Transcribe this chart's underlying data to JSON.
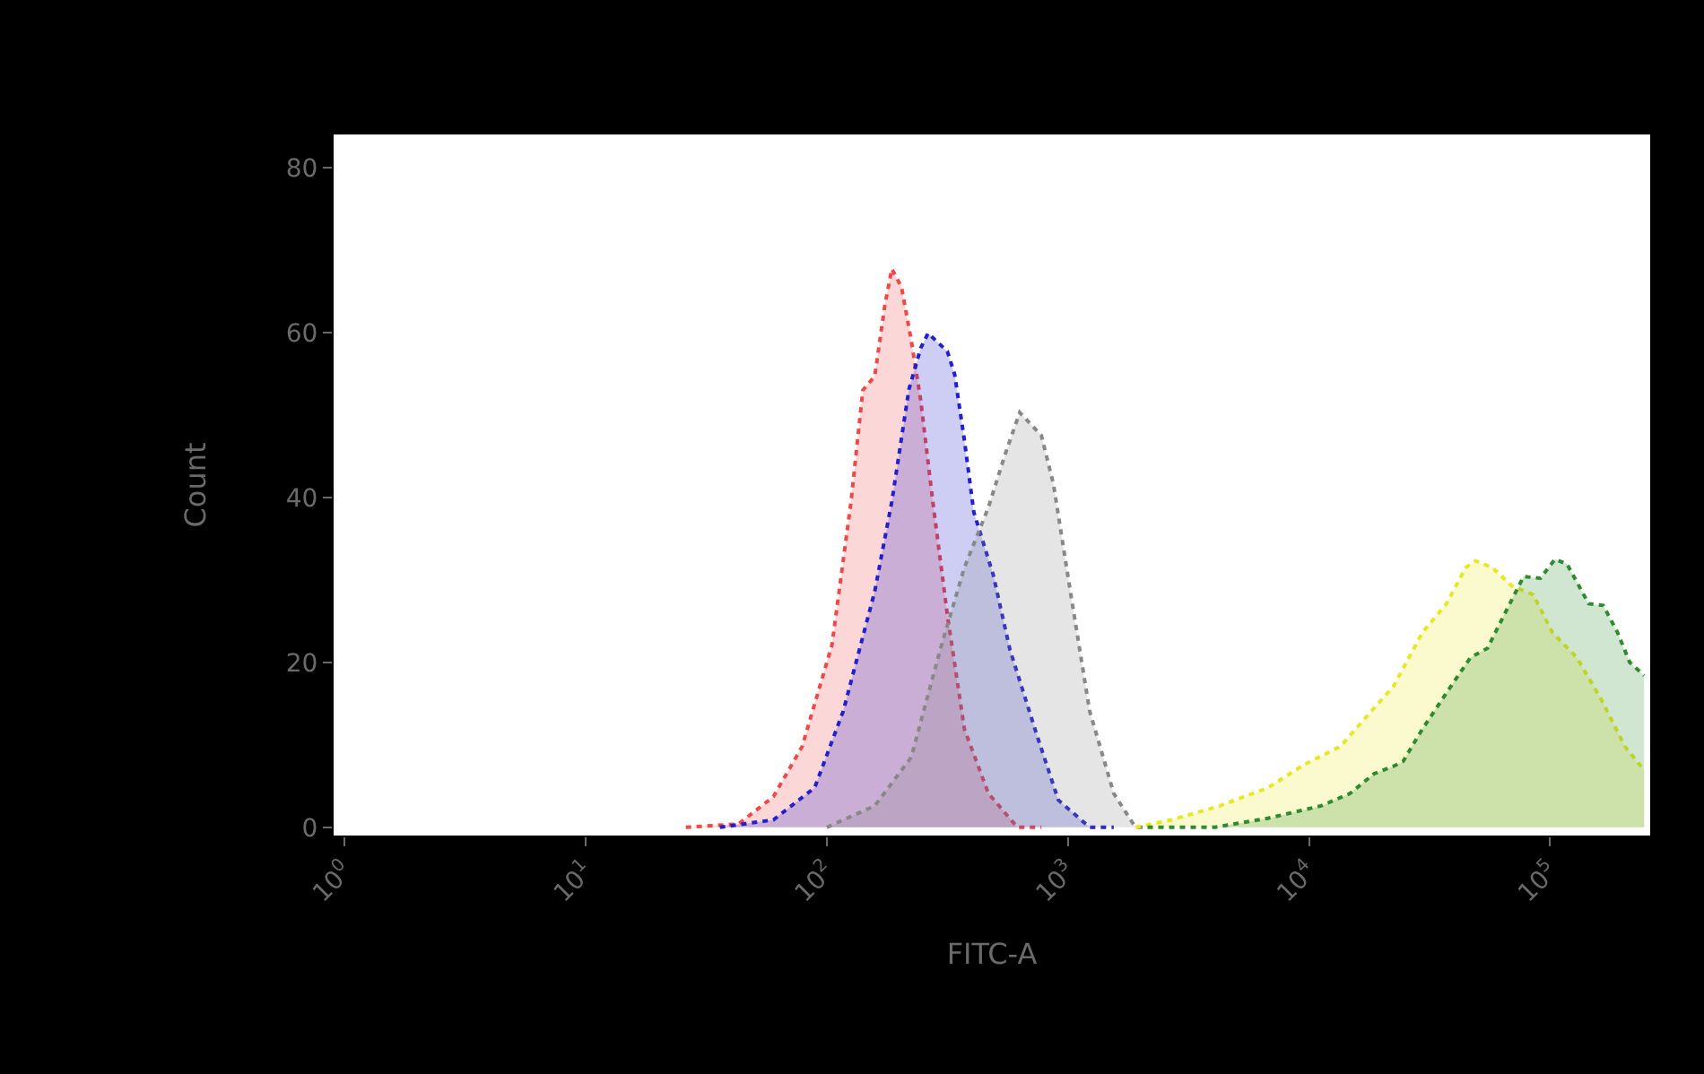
{
  "chart_data": {
    "type": "area",
    "xlabel": "FITC-A",
    "ylabel": "Count",
    "log": "x",
    "xlim": [
      0.9,
      260000
    ],
    "xticks": [
      {
        "value": 1,
        "label": "10$^{0}$"
      },
      {
        "value": 10,
        "label": "10$^{1}$"
      },
      {
        "value": 100,
        "label": "10$^{2}$"
      },
      {
        "value": 1000,
        "label": "10$^{3}$"
      },
      {
        "value": 10000,
        "label": "10$^{4}$"
      },
      {
        "value": 100000,
        "label": "10$^{5}$"
      }
    ],
    "ylim": [
      -1,
      84
    ],
    "yticks": [
      0,
      20,
      40,
      60,
      80
    ],
    "grid": false,
    "marker": "none",
    "line_style": "dotted",
    "series": [
      {
        "color": "#f04848",
        "x": [
          26,
          43,
          60,
          79,
          105,
          126,
          141,
          158,
          174,
          186,
          204,
          224,
          245,
          275,
          316,
          372,
          468,
          617,
          776
        ],
        "values": [
          0,
          0.4,
          3.7,
          9.8,
          22.1,
          39.5,
          53,
          54.7,
          63.3,
          67.7,
          65.5,
          59,
          51.8,
          39.5,
          25.8,
          11.9,
          4.1,
          0,
          0
        ]
      },
      {
        "color": "#2020d0",
        "x": [
          36,
          60,
          89,
          117,
          158,
          186,
          219,
          245,
          263,
          316,
          339,
          372,
          407,
          490,
          575,
          741,
          912,
          1230,
          1549
        ],
        "values": [
          0,
          0.9,
          4.8,
          14.1,
          28.6,
          39.5,
          53.1,
          58.1,
          59.9,
          57.7,
          54.9,
          46.9,
          38.2,
          30.6,
          21.5,
          11.3,
          3.3,
          0,
          0
        ]
      },
      {
        "color": "#888888",
        "x": [
          100,
          158,
          224,
          295,
          372,
          468,
          550,
          631,
          776,
          871,
          1023,
          1230,
          1549,
          1905,
          2138
        ],
        "values": [
          0,
          2.6,
          8.5,
          21.5,
          31.5,
          38.8,
          45.3,
          50.3,
          47.5,
          41.6,
          28.6,
          14.1,
          4.1,
          0,
          0
        ]
      },
      {
        "color": "#e8e820",
        "x": [
          1905,
          2692,
          4266,
          6761,
          9550,
          13490,
          16600,
          22390,
          29510,
          37150,
          44670,
          48980,
          57540,
          69180,
          85110,
          102300,
          128800,
          162200,
          204200,
          245500
        ],
        "values": [
          0,
          0.9,
          2.6,
          4.8,
          7.6,
          9.8,
          12.8,
          17.1,
          23.6,
          27.1,
          31.5,
          32.3,
          31.5,
          29.3,
          28.2,
          23.6,
          20.6,
          15.6,
          9.8,
          6.9
        ]
      },
      {
        "color": "#2e8b2e",
        "x": [
          2138,
          4074,
          6761,
          11220,
          14790,
          18620,
          22390,
          24550,
          29510,
          37150,
          46770,
          54950,
          64570,
          77620,
          91200,
          104700,
          117500,
          144500,
          166000,
          190500,
          213800,
          245500
        ],
        "values": [
          0,
          0,
          1.1,
          2.6,
          4.1,
          6.5,
          7.4,
          8.0,
          11.9,
          16.3,
          20.6,
          21.7,
          25.8,
          30.4,
          30.2,
          32.5,
          31.9,
          27.1,
          26.9,
          23.6,
          20.0,
          18.4
        ]
      }
    ]
  }
}
